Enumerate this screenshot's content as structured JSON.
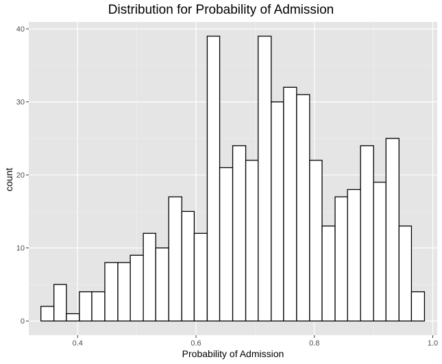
{
  "chart_data": {
    "type": "bar",
    "title": "Distribution for Probability of Admission",
    "xlabel": "Probability of Admission",
    "ylabel": "count",
    "xlim": [
      0.3175,
      1.0075
    ],
    "ylim": [
      -1.95,
      40.95
    ],
    "xticks": [
      "0.4",
      "0.6",
      "0.8",
      "1.0"
    ],
    "yticks": [
      "0",
      "10",
      "20",
      "30",
      "40"
    ],
    "bin_width": 0.0216,
    "bins": [
      {
        "x0": 0.338,
        "x1": 0.36,
        "count": 2
      },
      {
        "x0": 0.36,
        "x1": 0.381,
        "count": 5
      },
      {
        "x0": 0.381,
        "x1": 0.403,
        "count": 1
      },
      {
        "x0": 0.403,
        "x1": 0.424,
        "count": 4
      },
      {
        "x0": 0.424,
        "x1": 0.446,
        "count": 4
      },
      {
        "x0": 0.446,
        "x1": 0.468,
        "count": 8
      },
      {
        "x0": 0.468,
        "x1": 0.489,
        "count": 8
      },
      {
        "x0": 0.489,
        "x1": 0.511,
        "count": 9
      },
      {
        "x0": 0.511,
        "x1": 0.532,
        "count": 12
      },
      {
        "x0": 0.532,
        "x1": 0.554,
        "count": 10
      },
      {
        "x0": 0.554,
        "x1": 0.576,
        "count": 17
      },
      {
        "x0": 0.576,
        "x1": 0.597,
        "count": 15
      },
      {
        "x0": 0.597,
        "x1": 0.619,
        "count": 12
      },
      {
        "x0": 0.619,
        "x1": 0.64,
        "count": 39
      },
      {
        "x0": 0.64,
        "x1": 0.662,
        "count": 21
      },
      {
        "x0": 0.662,
        "x1": 0.684,
        "count": 24
      },
      {
        "x0": 0.684,
        "x1": 0.705,
        "count": 22
      },
      {
        "x0": 0.705,
        "x1": 0.727,
        "count": 39
      },
      {
        "x0": 0.727,
        "x1": 0.748,
        "count": 30
      },
      {
        "x0": 0.748,
        "x1": 0.77,
        "count": 32
      },
      {
        "x0": 0.77,
        "x1": 0.792,
        "count": 31
      },
      {
        "x0": 0.792,
        "x1": 0.813,
        "count": 22
      },
      {
        "x0": 0.813,
        "x1": 0.835,
        "count": 13
      },
      {
        "x0": 0.835,
        "x1": 0.856,
        "count": 17
      },
      {
        "x0": 0.856,
        "x1": 0.878,
        "count": 18
      },
      {
        "x0": 0.878,
        "x1": 0.9,
        "count": 24
      },
      {
        "x0": 0.9,
        "x1": 0.921,
        "count": 19
      },
      {
        "x0": 0.921,
        "x1": 0.943,
        "count": 25
      },
      {
        "x0": 0.943,
        "x1": 0.964,
        "count": 13
      },
      {
        "x0": 0.964,
        "x1": 0.986,
        "count": 4
      }
    ],
    "grid": true,
    "colors": {
      "panel_background": "#e5e5e5",
      "grid_major": "#ffffff",
      "grid_minor": "#f0f0f0",
      "bar_fill": "#ffffff",
      "bar_outline": "#000000"
    }
  }
}
